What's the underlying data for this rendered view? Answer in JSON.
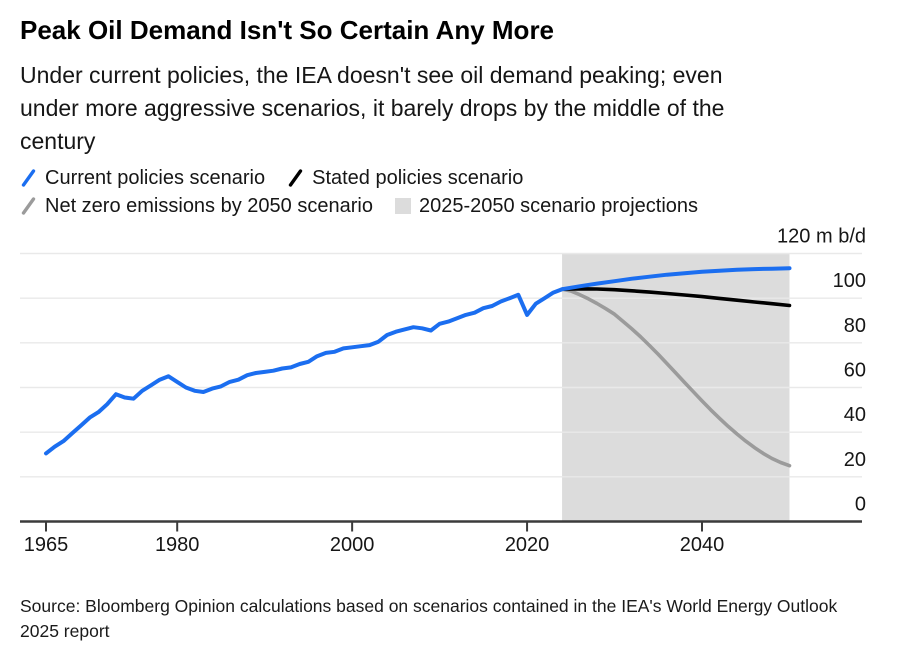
{
  "header": {
    "title": "Peak Oil Demand Isn't So Certain Any More",
    "subtitle_lines": [
      "Under current policies, the IEA doesn't see oil demand peaking; even",
      "under more aggressive scenarios, it barely drops by the middle of the",
      "century"
    ]
  },
  "legend": {
    "items": [
      {
        "label": "Current policies scenario",
        "color": "#1b6ef0",
        "marker": "line"
      },
      {
        "label": "Stated policies scenario",
        "color": "#000000",
        "marker": "line"
      },
      {
        "label": "Net zero emissions by 2050 scenario",
        "color": "#9b9b9b",
        "marker": "line"
      },
      {
        "label": "2025-2050 scenario projections",
        "color": "#dcdcdc",
        "marker": "band"
      }
    ]
  },
  "source_lines": [
    "Source: Bloomberg Opinion calculations based on scenarios contained in the IEA's World Energy Outlook",
    "2025 report"
  ],
  "chart_data": {
    "type": "line",
    "title": "Peak Oil Demand Isn't So Certain Any More",
    "unit_label": "120 m b/d",
    "xlabel": "",
    "ylabel": "m b/d",
    "xlim": [
      1965,
      2050
    ],
    "ylim": [
      0,
      120
    ],
    "xticks": [
      1965,
      1980,
      2000,
      2020,
      2040
    ],
    "yticks": [
      0,
      20,
      40,
      60,
      80,
      100
    ],
    "gridline_values": [
      20,
      40,
      60,
      80,
      100,
      120
    ],
    "grid": true,
    "legend_position": "top",
    "projection_band": {
      "start": 2024,
      "end": 2050
    },
    "colors": {
      "band": "#dcdcdc",
      "gridline": "#e9e9e9",
      "axis": "#3b3b3b",
      "tick_text": "#161616",
      "blue": "#1b6ef0",
      "black": "#000000",
      "gray": "#9b9b9b"
    },
    "series": [
      {
        "id": "current-policies",
        "name": "Current policies scenario",
        "color": "#1b6ef0",
        "width": 4,
        "points": [
          [
            1965,
            30.5
          ],
          [
            1966,
            33.5
          ],
          [
            1967,
            36
          ],
          [
            1968,
            39.5
          ],
          [
            1969,
            43
          ],
          [
            1970,
            46.5
          ],
          [
            1971,
            49
          ],
          [
            1972,
            52.5
          ],
          [
            1973,
            57
          ],
          [
            1974,
            55.5
          ],
          [
            1975,
            55
          ],
          [
            1976,
            58.5
          ],
          [
            1977,
            61
          ],
          [
            1978,
            63.5
          ],
          [
            1979,
            65
          ],
          [
            1980,
            62.5
          ],
          [
            1981,
            60
          ],
          [
            1982,
            58.5
          ],
          [
            1983,
            58
          ],
          [
            1984,
            59.5
          ],
          [
            1985,
            60.5
          ],
          [
            1986,
            62.5
          ],
          [
            1987,
            63.5
          ],
          [
            1988,
            65.5
          ],
          [
            1989,
            66.5
          ],
          [
            1990,
            67
          ],
          [
            1991,
            67.5
          ],
          [
            1992,
            68.5
          ],
          [
            1993,
            69
          ],
          [
            1994,
            70.5
          ],
          [
            1995,
            71.5
          ],
          [
            1996,
            74
          ],
          [
            1997,
            75.5
          ],
          [
            1998,
            76
          ],
          [
            1999,
            77.5
          ],
          [
            2000,
            78
          ],
          [
            2001,
            78.5
          ],
          [
            2002,
            79
          ],
          [
            2003,
            80.5
          ],
          [
            2004,
            83.5
          ],
          [
            2005,
            85
          ],
          [
            2006,
            86
          ],
          [
            2007,
            87
          ],
          [
            2008,
            86.5
          ],
          [
            2009,
            85.5
          ],
          [
            2010,
            88.5
          ],
          [
            2011,
            89.5
          ],
          [
            2012,
            91
          ],
          [
            2013,
            92.5
          ],
          [
            2014,
            93.5
          ],
          [
            2015,
            95.5
          ],
          [
            2016,
            96.5
          ],
          [
            2017,
            98.5
          ],
          [
            2018,
            100
          ],
          [
            2019,
            101.5
          ],
          [
            2020,
            92.5
          ],
          [
            2021,
            97.5
          ],
          [
            2022,
            100
          ],
          [
            2023,
            102.5
          ],
          [
            2024,
            104
          ],
          [
            2026,
            105.3
          ],
          [
            2028,
            106.5
          ],
          [
            2030,
            107.6
          ],
          [
            2032,
            108.7
          ],
          [
            2034,
            109.6
          ],
          [
            2036,
            110.5
          ],
          [
            2038,
            111.2
          ],
          [
            2040,
            111.8
          ],
          [
            2042,
            112.3
          ],
          [
            2044,
            112.7
          ],
          [
            2046,
            113
          ],
          [
            2048,
            113.2
          ],
          [
            2050,
            113.4
          ]
        ]
      },
      {
        "id": "stated-policies",
        "name": "Stated policies scenario",
        "color": "#000000",
        "width": 3.6,
        "points": [
          [
            2024,
            104
          ],
          [
            2026,
            104.2
          ],
          [
            2028,
            104.1
          ],
          [
            2030,
            103.8
          ],
          [
            2032,
            103.3
          ],
          [
            2034,
            102.7
          ],
          [
            2036,
            102.1
          ],
          [
            2038,
            101.4
          ],
          [
            2040,
            100.7
          ],
          [
            2042,
            99.9
          ],
          [
            2044,
            99.1
          ],
          [
            2046,
            98.3
          ],
          [
            2048,
            97.5
          ],
          [
            2050,
            96.7
          ]
        ]
      },
      {
        "id": "net-zero-2050",
        "name": "Net zero emissions by 2050 scenario",
        "color": "#9b9b9b",
        "width": 3.6,
        "points": [
          [
            2024,
            104
          ],
          [
            2025,
            103.2
          ],
          [
            2026,
            101.6
          ],
          [
            2027,
            99.7
          ],
          [
            2028,
            97.6
          ],
          [
            2029,
            95.3
          ],
          [
            2030,
            92.8
          ],
          [
            2031,
            89.5
          ],
          [
            2032,
            86.2
          ],
          [
            2033,
            82.6
          ],
          [
            2034,
            78.8
          ],
          [
            2035,
            74.8
          ],
          [
            2036,
            70.7
          ],
          [
            2037,
            66.5
          ],
          [
            2038,
            62.3
          ],
          [
            2039,
            58.1
          ],
          [
            2040,
            54
          ],
          [
            2041,
            50
          ],
          [
            2042,
            46.2
          ],
          [
            2043,
            42.6
          ],
          [
            2044,
            39.2
          ],
          [
            2045,
            36
          ],
          [
            2046,
            33.1
          ],
          [
            2047,
            30.5
          ],
          [
            2048,
            28.2
          ],
          [
            2049,
            26.4
          ],
          [
            2050,
            25
          ]
        ]
      }
    ]
  }
}
